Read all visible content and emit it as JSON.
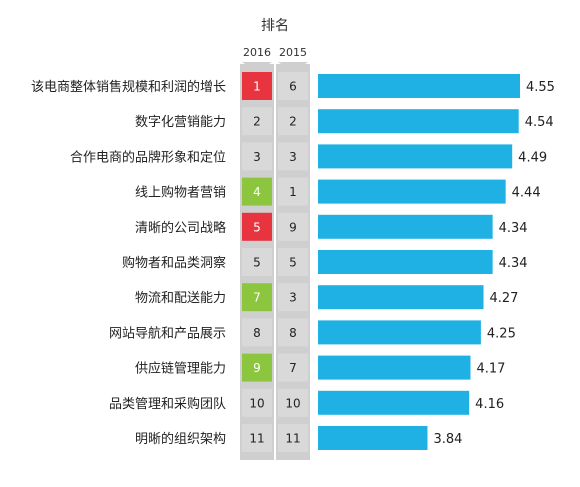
{
  "chart_data": {
    "type": "bar",
    "header": "排名",
    "year_labels": [
      "2016",
      "2015"
    ],
    "categories": [
      "该电商整体销售规模和利润的增长",
      "数字化营销能力",
      "合作电商的品牌形象和定位",
      "线上购物者营销",
      "清晰的公司战略",
      "购物者和品类洞察",
      "物流和配送能力",
      "网站导航和产品展示",
      "供应链管理能力",
      "品类管理和采购团队",
      "明晰的组织架构"
    ],
    "values": [
      4.55,
      4.54,
      4.49,
      4.44,
      4.34,
      4.34,
      4.27,
      4.25,
      4.17,
      4.16,
      3.84
    ],
    "value_labels": [
      "4.55",
      "4.54",
      "4.49",
      "4.44",
      "4.34",
      "4.34",
      "4.27",
      "4.25",
      "4.17",
      "4.16",
      "3.84"
    ],
    "rank_2016": [
      "1",
      "2",
      "3",
      "4",
      "5",
      "5",
      "7",
      "8",
      "9",
      "10",
      "11"
    ],
    "rank_2015": [
      "6",
      "2",
      "3",
      "1",
      "9",
      "5",
      "3",
      "8",
      "7",
      "10",
      "11"
    ],
    "rank_2016_status": [
      "up",
      "same",
      "same",
      "down",
      "up",
      "same",
      "down",
      "same",
      "down",
      "same",
      "same"
    ],
    "xlim": [
      3.0,
      4.65
    ],
    "grid": false,
    "legend": "none"
  },
  "colors": {
    "bar": "#1fb0e4",
    "rank_up": "#e8343f",
    "rank_down": "#8cc63f",
    "rank_neutral": "#d9d9d9",
    "column_background": "#cfcfcf",
    "rank_text_light": "#ffffff",
    "rank_text_dark": "#222222"
  }
}
